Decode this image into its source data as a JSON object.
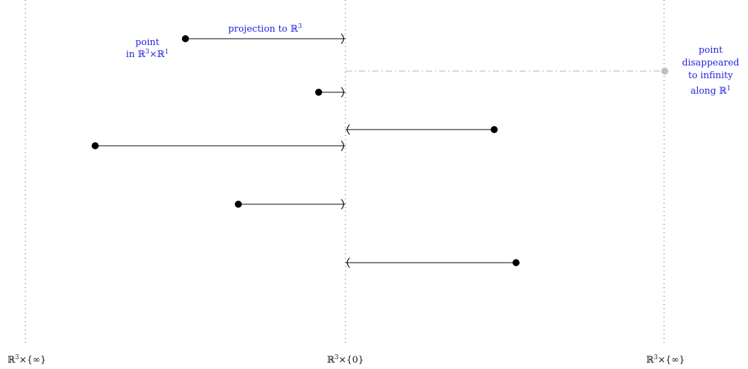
{
  "axes": {
    "left_label": "ℝ3×{∞}",
    "center_label": "ℝ3×{0}",
    "right_label": "ℝ3×{∞}"
  },
  "annotations": {
    "point_label_line1": "point",
    "point_label_line2": "in ℝ3×ℝ1",
    "projection_label": "projection to ℝ3",
    "disappeared_line1": "point",
    "disappeared_line2": "disappeared",
    "disappeared_line3": "to infinity",
    "disappeared_line4": "along ℝ1"
  },
  "colors": {
    "annotation": "#1f1fe0",
    "segment": "#000000",
    "guide": "#444444",
    "disappeared": "#c0c0c0"
  }
}
